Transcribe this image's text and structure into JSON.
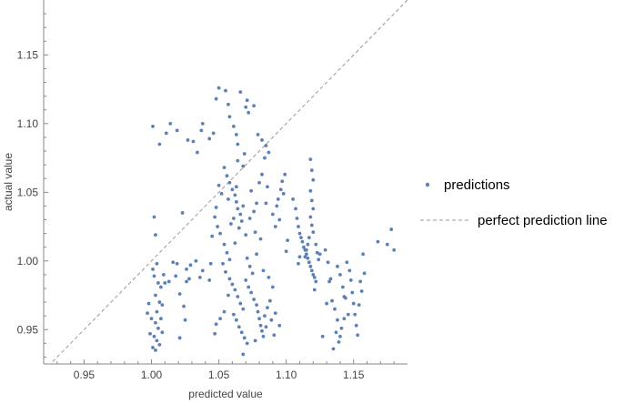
{
  "chart_data": {
    "type": "scatter",
    "xlabel": "predicted value",
    "ylabel": "actual value",
    "xlim": [
      0.92,
      1.19
    ],
    "ylim": [
      0.925,
      1.19
    ],
    "xticks": [
      0.95,
      1.0,
      1.05,
      1.1,
      1.15
    ],
    "yticks": [
      0.95,
      1.0,
      1.05,
      1.1,
      1.15
    ],
    "xtick_labels": [
      "0.95",
      "1.00",
      "1.05",
      "1.10",
      "1.15"
    ],
    "ytick_labels": [
      "0.95",
      "1.00",
      "1.05",
      "1.10",
      "1.15"
    ],
    "grid": false,
    "legend_position": "right",
    "series": [
      {
        "name": "predictions",
        "color": "#5E81B5",
        "marker": "dot",
        "points": [
          [
            1.001,
            1.098
          ],
          [
            1.006,
            1.085
          ],
          [
            1.011,
            1.093
          ],
          [
            1.014,
            1.1
          ],
          [
            1.019,
            1.095
          ],
          [
            1.027,
            1.088
          ],
          [
            1.031,
            1.087
          ],
          [
            1.034,
            1.079
          ],
          [
            1.037,
            1.095
          ],
          [
            1.038,
            1.1
          ],
          [
            1.043,
            1.089
          ],
          [
            1.046,
            1.093
          ],
          [
            1.002,
            1.032
          ],
          [
            1.003,
            1.019
          ],
          [
            1.001,
            0.994
          ],
          [
            1.004,
            0.998
          ],
          [
            1.002,
            0.989
          ],
          [
            1.005,
            0.984
          ],
          [
            1.007,
            0.981
          ],
          [
            1.003,
            0.975
          ],
          [
            1.006,
            0.97
          ],
          [
            1.008,
            0.968
          ],
          [
            1.004,
            0.963
          ],
          [
            1.007,
            0.958
          ],
          [
            1.003,
            0.955
          ],
          [
            1.005,
            0.951
          ],
          [
            1.008,
            0.948
          ],
          [
            1.002,
            0.945
          ],
          [
            1.004,
            0.942
          ],
          [
            1.006,
            0.939
          ],
          [
            1.001,
            0.937
          ],
          [
            1.003,
            0.935
          ],
          [
            1.0,
            0.958
          ],
          [
            0.999,
            0.947
          ],
          [
            0.997,
            0.962
          ],
          [
            0.998,
            0.969
          ],
          [
            1.009,
            0.99
          ],
          [
            1.01,
            0.984
          ],
          [
            1.016,
            0.999
          ],
          [
            1.018,
            0.989
          ],
          [
            1.021,
            0.976
          ],
          [
            1.024,
            0.967
          ],
          [
            1.019,
            0.998
          ],
          [
            1.026,
            0.994
          ],
          [
            1.026,
            0.985
          ],
          [
            1.028,
            0.987
          ],
          [
            1.025,
            0.957
          ],
          [
            1.021,
            0.944
          ],
          [
            1.029,
            0.997
          ],
          [
            1.013,
            0.985
          ],
          [
            1.023,
            1.035
          ],
          [
            1.033,
            1.0
          ],
          [
            1.036,
            0.988
          ],
          [
            1.038,
            0.993
          ],
          [
            1.048,
            1.118
          ],
          [
            1.05,
            1.126
          ],
          [
            1.055,
            1.124
          ],
          [
            1.057,
            1.114
          ],
          [
            1.058,
            1.105
          ],
          [
            1.061,
            1.098
          ],
          [
            1.063,
            1.092
          ],
          [
            1.064,
            1.085
          ],
          [
            1.066,
            1.123
          ],
          [
            1.07,
            1.112
          ],
          [
            1.072,
            1.108
          ],
          [
            1.071,
            1.117
          ],
          [
            1.076,
            1.113
          ],
          [
            1.079,
            1.092
          ],
          [
            1.082,
            1.088
          ],
          [
            1.085,
            1.084
          ],
          [
            1.087,
            1.079
          ],
          [
            1.084,
            1.075
          ],
          [
            1.069,
            1.078
          ],
          [
            1.064,
            1.073
          ],
          [
            1.068,
            1.069
          ],
          [
            1.054,
            1.068
          ],
          [
            1.056,
            1.062
          ],
          [
            1.058,
            1.057
          ],
          [
            1.06,
            1.052
          ],
          [
            1.062,
            1.048
          ],
          [
            1.063,
            1.043
          ],
          [
            1.064,
            1.038
          ],
          [
            1.066,
            1.034
          ],
          [
            1.057,
            1.045
          ],
          [
            1.061,
            1.031
          ],
          [
            1.059,
            1.027
          ],
          [
            1.065,
            1.024
          ],
          [
            1.067,
            1.029
          ],
          [
            1.068,
            1.04
          ],
          [
            1.063,
            1.054
          ],
          [
            1.052,
            1.049
          ],
          [
            1.05,
            1.055
          ],
          [
            1.048,
            1.039
          ],
          [
            1.047,
            1.032
          ],
          [
            1.049,
            1.025
          ],
          [
            1.051,
            1.02
          ],
          [
            1.045,
            1.018
          ],
          [
            1.054,
            1.012
          ],
          [
            1.056,
            1.006
          ],
          [
            1.058,
            1.001
          ],
          [
            1.062,
            1.013
          ],
          [
            1.07,
            1.019
          ],
          [
            1.073,
            1.031
          ],
          [
            1.076,
            1.036
          ],
          [
            1.078,
            1.042
          ],
          [
            1.074,
            1.051
          ],
          [
            1.08,
            1.057
          ],
          [
            1.082,
            1.063
          ],
          [
            1.086,
            1.054
          ],
          [
            1.085,
            1.042
          ],
          [
            1.077,
            1.021
          ],
          [
            1.081,
            1.016
          ],
          [
            1.053,
            0.998
          ],
          [
            1.055,
            0.992
          ],
          [
            1.058,
            0.987
          ],
          [
            1.06,
            0.983
          ],
          [
            1.062,
            0.979
          ],
          [
            1.064,
            0.974
          ],
          [
            1.066,
            0.969
          ],
          [
            1.068,
            0.965
          ],
          [
            1.057,
            0.975
          ],
          [
            1.061,
            0.961
          ],
          [
            1.063,
            0.957
          ],
          [
            1.065,
            0.952
          ],
          [
            1.067,
            0.948
          ],
          [
            1.069,
            0.944
          ],
          [
            1.071,
            0.94
          ],
          [
            1.068,
            0.932
          ],
          [
            1.054,
            0.963
          ],
          [
            1.051,
            0.958
          ],
          [
            1.048,
            0.954
          ],
          [
            1.047,
            0.947
          ],
          [
            1.07,
            0.986
          ],
          [
            1.072,
            0.981
          ],
          [
            1.074,
            0.977
          ],
          [
            1.076,
            0.972
          ],
          [
            1.078,
            0.968
          ],
          [
            1.079,
            0.963
          ],
          [
            1.08,
            0.958
          ],
          [
            1.081,
            0.953
          ],
          [
            1.082,
            0.949
          ],
          [
            1.083,
            0.945
          ],
          [
            1.077,
            0.942
          ],
          [
            1.084,
            0.96
          ],
          [
            1.086,
            0.966
          ],
          [
            1.088,
            0.971
          ],
          [
            1.085,
            0.952
          ],
          [
            1.089,
            0.957
          ],
          [
            1.091,
            0.946
          ],
          [
            1.075,
            0.991
          ],
          [
            1.073,
            0.996
          ],
          [
            1.071,
            1.002
          ],
          [
            1.078,
            1.005
          ],
          [
            1.083,
            0.993
          ],
          [
            1.087,
            0.988
          ],
          [
            1.09,
            0.981
          ],
          [
            1.044,
            0.998
          ],
          [
            1.043,
            0.986
          ],
          [
            1.095,
            0.953
          ],
          [
            1.092,
            0.962
          ],
          [
            1.09,
            1.034
          ],
          [
            1.093,
            1.04
          ],
          [
            1.094,
            1.045
          ],
          [
            1.096,
            1.052
          ],
          [
            1.097,
            1.058
          ],
          [
            1.099,
            1.063
          ],
          [
            1.098,
            1.049
          ],
          [
            1.095,
            1.03
          ],
          [
            1.092,
            1.025
          ],
          [
            1.101,
            1.015
          ],
          [
            1.1,
            1.007
          ],
          [
            1.105,
            1.045
          ],
          [
            1.107,
            1.038
          ],
          [
            1.108,
            1.031
          ],
          [
            1.109,
            1.025
          ],
          [
            1.11,
            1.02
          ],
          [
            1.111,
            1.017
          ],
          [
            1.112,
            1.014
          ],
          [
            1.113,
            1.01
          ],
          [
            1.114,
            1.008
          ],
          [
            1.115,
            1.005
          ],
          [
            1.116,
            1.002
          ],
          [
            1.117,
            0.999
          ],
          [
            1.118,
            0.996
          ],
          [
            1.119,
            0.993
          ],
          [
            1.12,
            0.99
          ],
          [
            1.121,
            0.988
          ],
          [
            1.118,
            1.074
          ],
          [
            1.119,
            1.066
          ],
          [
            1.12,
            1.059
          ],
          [
            1.118,
            1.051
          ],
          [
            1.119,
            1.044
          ],
          [
            1.12,
            1.038
          ],
          [
            1.118,
            1.032
          ],
          [
            1.119,
            1.026
          ],
          [
            1.12,
            1.021
          ],
          [
            1.117,
            1.017
          ],
          [
            1.116,
            1.012
          ],
          [
            1.115,
            1.008
          ],
          [
            1.114,
            1.003
          ],
          [
            1.122,
            1.012
          ],
          [
            1.123,
            1.006
          ],
          [
            1.124,
            1.001
          ],
          [
            1.11,
            1.003
          ],
          [
            1.109,
            0.998
          ],
          [
            1.122,
            0.985
          ],
          [
            1.121,
            0.979
          ],
          [
            1.125,
            1.005
          ],
          [
            1.129,
            1.008
          ],
          [
            1.131,
            0.999
          ],
          [
            1.132,
            0.985
          ],
          [
            1.134,
            0.971
          ],
          [
            1.136,
            0.965
          ],
          [
            1.138,
            0.957
          ],
          [
            1.137,
            0.948
          ],
          [
            1.139,
            0.941
          ],
          [
            1.135,
            0.936
          ],
          [
            1.141,
            0.951
          ],
          [
            1.143,
            0.958
          ],
          [
            1.14,
            0.99
          ],
          [
            1.142,
            0.981
          ],
          [
            1.144,
            0.973
          ],
          [
            1.145,
            0.999
          ],
          [
            1.147,
            0.993
          ],
          [
            1.148,
            0.986
          ],
          [
            1.149,
            0.977
          ],
          [
            1.15,
            0.969
          ],
          [
            1.151,
            0.961
          ],
          [
            1.152,
            0.953
          ],
          [
            1.153,
            0.946
          ],
          [
            1.154,
            0.968
          ],
          [
            1.155,
            0.985
          ],
          [
            1.156,
            0.978
          ],
          [
            1.157,
            1.005
          ],
          [
            1.158,
            0.991
          ],
          [
            1.146,
            0.961
          ],
          [
            1.14,
            0.945
          ],
          [
            1.133,
            0.987
          ],
          [
            1.127,
            0.945
          ],
          [
            1.13,
            0.969
          ],
          [
            1.138,
            0.996
          ],
          [
            1.143,
            0.974
          ],
          [
            1.168,
            1.014
          ],
          [
            1.178,
            1.023
          ],
          [
            1.18,
            1.008
          ],
          [
            1.175,
            1.012
          ]
        ]
      },
      {
        "name": "perfect prediction line",
        "color": "#999999",
        "line_style": "dashed",
        "points": [
          [
            0.92,
            0.92
          ],
          [
            1.19,
            1.19
          ]
        ]
      }
    ]
  }
}
